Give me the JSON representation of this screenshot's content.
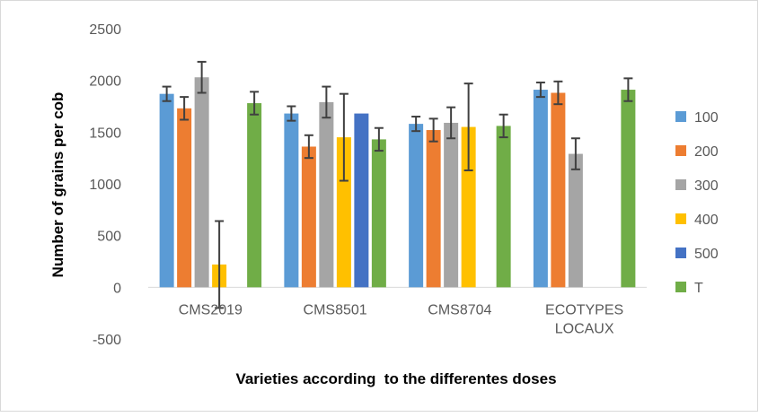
{
  "chart_data": {
    "type": "bar",
    "title": "",
    "xlabel": "Varieties according  to the differentes doses",
    "ylabel": "Number of grains per cob",
    "ylim": [
      -500,
      2500
    ],
    "yticks": [
      -500,
      0,
      500,
      1000,
      1500,
      2000,
      2500
    ],
    "grid": false,
    "legend_position": "right",
    "categories": [
      [
        "CMS2019"
      ],
      [
        "CMS8501"
      ],
      [
        "CMS8704"
      ],
      [
        "ECOTYPES",
        "LOCAUX"
      ]
    ],
    "series": [
      {
        "name": "100",
        "color": "#5B9BD5",
        "values": [
          1870,
          1680,
          1580,
          1910
        ],
        "errors": [
          70,
          70,
          70,
          70
        ]
      },
      {
        "name": "200",
        "color": "#ED7D31",
        "values": [
          1730,
          1360,
          1520,
          1880
        ],
        "errors": [
          110,
          110,
          110,
          110
        ]
      },
      {
        "name": "300",
        "color": "#A5A5A5",
        "values": [
          2030,
          1790,
          1590,
          1290
        ],
        "errors": [
          150,
          150,
          150,
          150
        ]
      },
      {
        "name": "400",
        "color": "#FFC000",
        "values": [
          220,
          1450,
          1550,
          null
        ],
        "errors": [
          420,
          420,
          420,
          null
        ]
      },
      {
        "name": "500",
        "color": "#4472C4",
        "values": [
          null,
          1680,
          null,
          null
        ],
        "errors": [
          null,
          null,
          null,
          null
        ]
      },
      {
        "name": "T",
        "color": "#70AD47",
        "values": [
          1780,
          1430,
          1560,
          1910
        ],
        "errors": [
          110,
          110,
          110,
          110
        ]
      }
    ]
  }
}
